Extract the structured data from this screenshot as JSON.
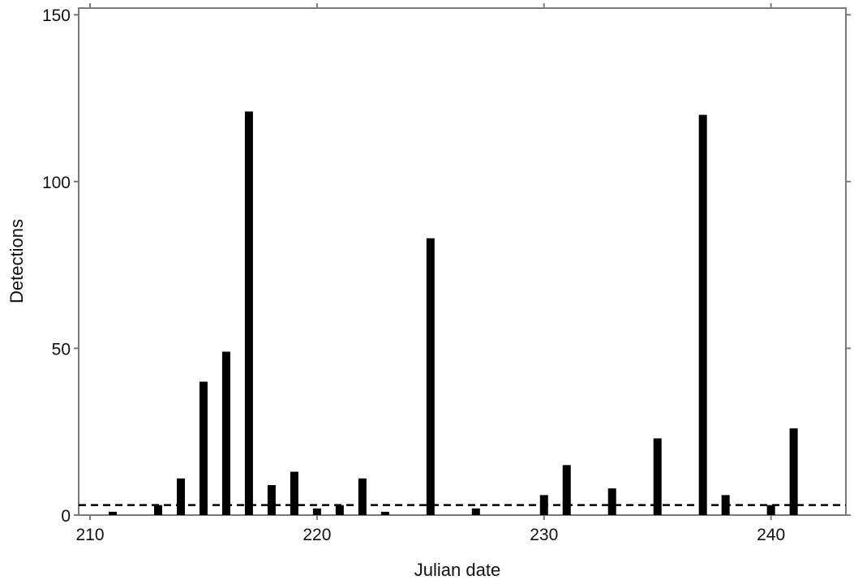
{
  "chart_data": {
    "type": "bar",
    "xlabel": "Julian date",
    "ylabel": "Detections",
    "xlim": [
      209.5,
      243.3
    ],
    "ylim": [
      0,
      152
    ],
    "xticks": [
      210,
      220,
      230,
      240
    ],
    "yticks": [
      0,
      50,
      100,
      150
    ],
    "x": [
      211,
      213,
      214,
      215,
      216,
      217,
      218,
      219,
      220,
      221,
      222,
      223,
      225,
      227,
      230,
      231,
      233,
      235,
      237,
      238,
      240,
      241
    ],
    "values": [
      1,
      3,
      11,
      40,
      49,
      121,
      9,
      13,
      2,
      3,
      11,
      1,
      83,
      2,
      6,
      15,
      8,
      23,
      120,
      6,
      3,
      26
    ],
    "reference_line": {
      "y": 3,
      "style": "dashed"
    },
    "grid": false,
    "colors": {
      "bars": "#000000",
      "frame": "#7a7a7a",
      "reference_line": "#000000"
    }
  }
}
